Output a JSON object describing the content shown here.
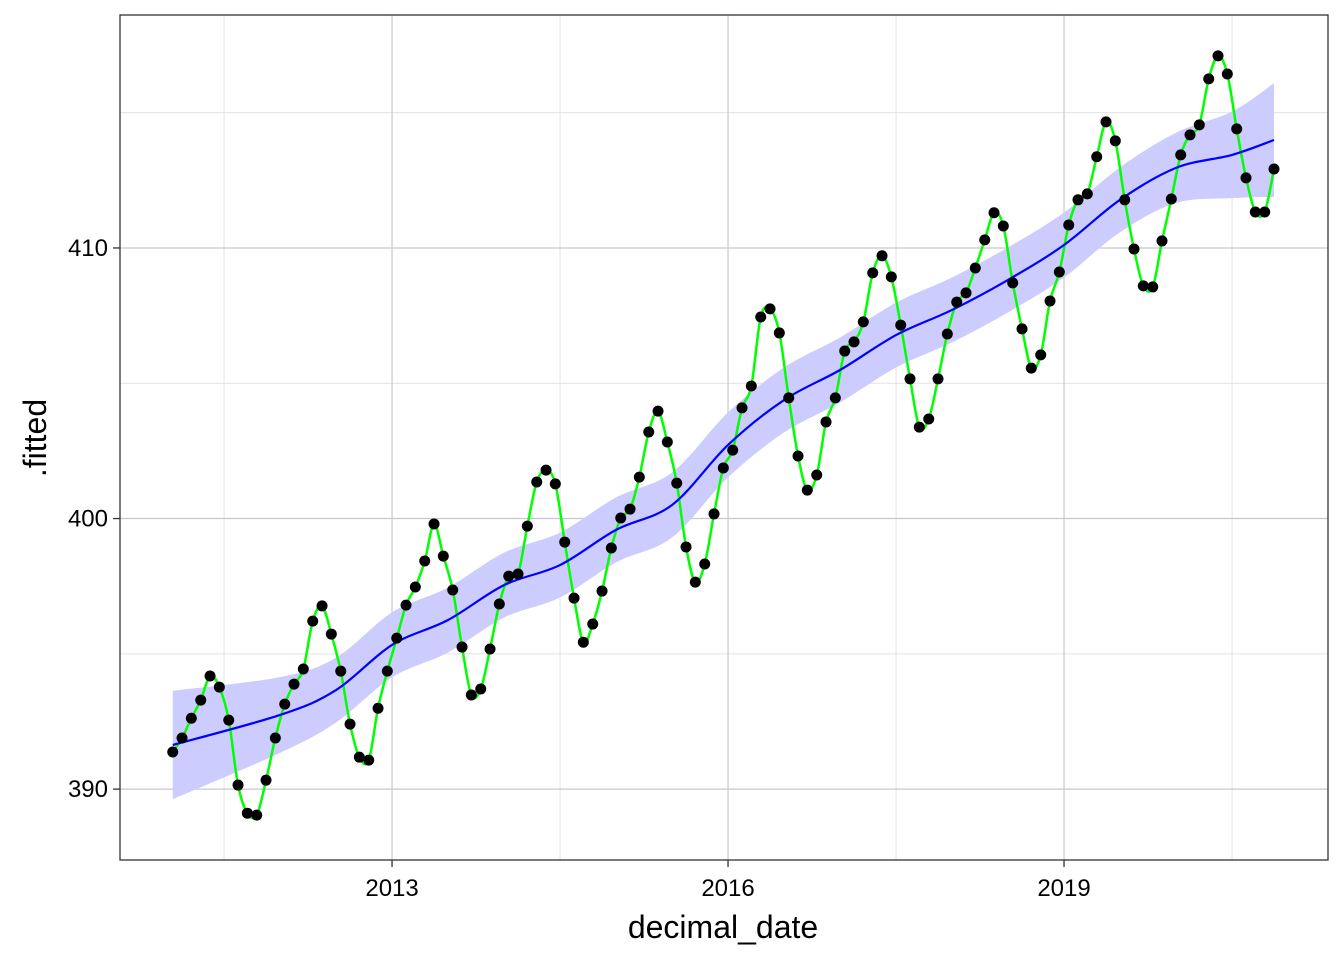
{
  "chart_data": {
    "type": "scatter",
    "x_label": "decimal_date",
    "y_label": ".fitted",
    "xlim": [
      2010.571,
      2021.357
    ],
    "ylim": [
      387.38,
      418.61
    ],
    "xticks": [
      2013,
      2016,
      2019
    ],
    "yticks": [
      390,
      400,
      410
    ],
    "minor_xticks": [
      2011.5,
      2014.5,
      2017.5,
      2020.5
    ],
    "minor_yticks": [
      395,
      405,
      415
    ],
    "grid": true,
    "points": {
      "color": "#000000",
      "line_color": "#00ff00",
      "x": [
        2011.042,
        2011.125,
        2011.208,
        2011.292,
        2011.375,
        2011.458,
        2011.542,
        2011.625,
        2011.708,
        2011.792,
        2011.875,
        2011.958,
        2012.042,
        2012.125,
        2012.208,
        2012.292,
        2012.375,
        2012.458,
        2012.542,
        2012.625,
        2012.708,
        2012.792,
        2012.875,
        2012.958,
        2013.042,
        2013.125,
        2013.208,
        2013.292,
        2013.375,
        2013.458,
        2013.542,
        2013.625,
        2013.708,
        2013.792,
        2013.875,
        2013.958,
        2014.042,
        2014.125,
        2014.208,
        2014.292,
        2014.375,
        2014.458,
        2014.542,
        2014.625,
        2014.708,
        2014.792,
        2014.875,
        2014.958,
        2015.042,
        2015.125,
        2015.208,
        2015.292,
        2015.375,
        2015.458,
        2015.542,
        2015.625,
        2015.708,
        2015.792,
        2015.875,
        2015.958,
        2016.042,
        2016.125,
        2016.208,
        2016.292,
        2016.375,
        2016.458,
        2016.542,
        2016.625,
        2016.708,
        2016.792,
        2016.875,
        2016.958,
        2017.042,
        2017.125,
        2017.208,
        2017.292,
        2017.375,
        2017.458,
        2017.542,
        2017.625,
        2017.708,
        2017.792,
        2017.875,
        2017.958,
        2018.042,
        2018.125,
        2018.208,
        2018.292,
        2018.375,
        2018.458,
        2018.542,
        2018.625,
        2018.708,
        2018.792,
        2018.875,
        2018.958,
        2019.042,
        2019.125,
        2019.208,
        2019.292,
        2019.375,
        2019.458,
        2019.542,
        2019.625,
        2019.708,
        2019.792,
        2019.875,
        2019.958,
        2020.042,
        2020.125,
        2020.208,
        2020.292,
        2020.375,
        2020.458,
        2020.542,
        2020.625,
        2020.708,
        2020.792,
        2020.875
      ],
      "values": [
        391.37,
        391.89,
        392.62,
        393.29,
        394.18,
        393.77,
        392.55,
        390.15,
        389.11,
        389.04,
        390.33,
        391.89,
        393.14,
        393.88,
        394.44,
        396.21,
        396.77,
        395.73,
        394.36,
        392.4,
        391.18,
        391.07,
        392.99,
        394.36,
        395.58,
        396.8,
        397.47,
        398.43,
        399.8,
        398.61,
        397.36,
        395.25,
        393.48,
        393.7,
        395.18,
        396.84,
        397.87,
        397.95,
        399.72,
        401.35,
        401.79,
        401.28,
        399.13,
        397.06,
        395.43,
        396.1,
        397.32,
        398.91,
        400.02,
        400.35,
        401.53,
        403.2,
        403.97,
        402.83,
        401.31,
        398.95,
        397.65,
        398.32,
        400.17,
        401.87,
        402.53,
        404.09,
        404.9,
        407.45,
        407.75,
        406.86,
        404.46,
        402.31,
        401.05,
        401.61,
        403.57,
        404.46,
        406.19,
        406.53,
        407.27,
        409.08,
        409.71,
        408.93,
        407.15,
        405.16,
        403.38,
        403.68,
        405.16,
        406.82,
        408.0,
        408.34,
        409.26,
        410.3,
        411.3,
        410.81,
        408.71,
        407.01,
        405.56,
        406.05,
        408.04,
        409.11,
        410.85,
        411.78,
        412.0,
        413.37,
        414.66,
        413.96,
        411.78,
        409.96,
        408.6,
        408.56,
        410.26,
        411.81,
        413.44,
        414.18,
        414.55,
        416.25,
        417.1,
        416.43,
        414.4,
        412.59,
        411.33,
        411.33,
        412.92
      ]
    },
    "trend": {
      "color": "#0000ff",
      "band_color": "#ccccff",
      "x": [
        2011.042,
        2012,
        2012.5,
        2013,
        2013.5,
        2014,
        2014.5,
        2015,
        2015.5,
        2016,
        2016.5,
        2017,
        2017.5,
        2018,
        2018.5,
        2019,
        2019.5,
        2020,
        2020.5,
        2020.875
      ],
      "values": [
        391.63,
        392.74,
        393.66,
        395.33,
        396.25,
        397.54,
        398.28,
        399.58,
        400.5,
        402.72,
        404.38,
        405.49,
        406.78,
        407.71,
        408.82,
        410.11,
        411.78,
        412.96,
        413.44,
        413.99
      ],
      "lower": [
        389.63,
        391.34,
        392.46,
        394.13,
        395.05,
        396.34,
        397.08,
        398.38,
        399.3,
        401.52,
        403.18,
        404.29,
        405.58,
        406.51,
        407.62,
        408.91,
        410.58,
        411.66,
        411.84,
        411.89
      ],
      "upper": [
        393.63,
        394.14,
        394.86,
        396.53,
        397.45,
        398.74,
        399.48,
        400.78,
        401.7,
        403.92,
        405.58,
        406.69,
        407.98,
        408.91,
        410.02,
        411.31,
        412.98,
        414.26,
        415.04,
        416.09
      ]
    }
  }
}
